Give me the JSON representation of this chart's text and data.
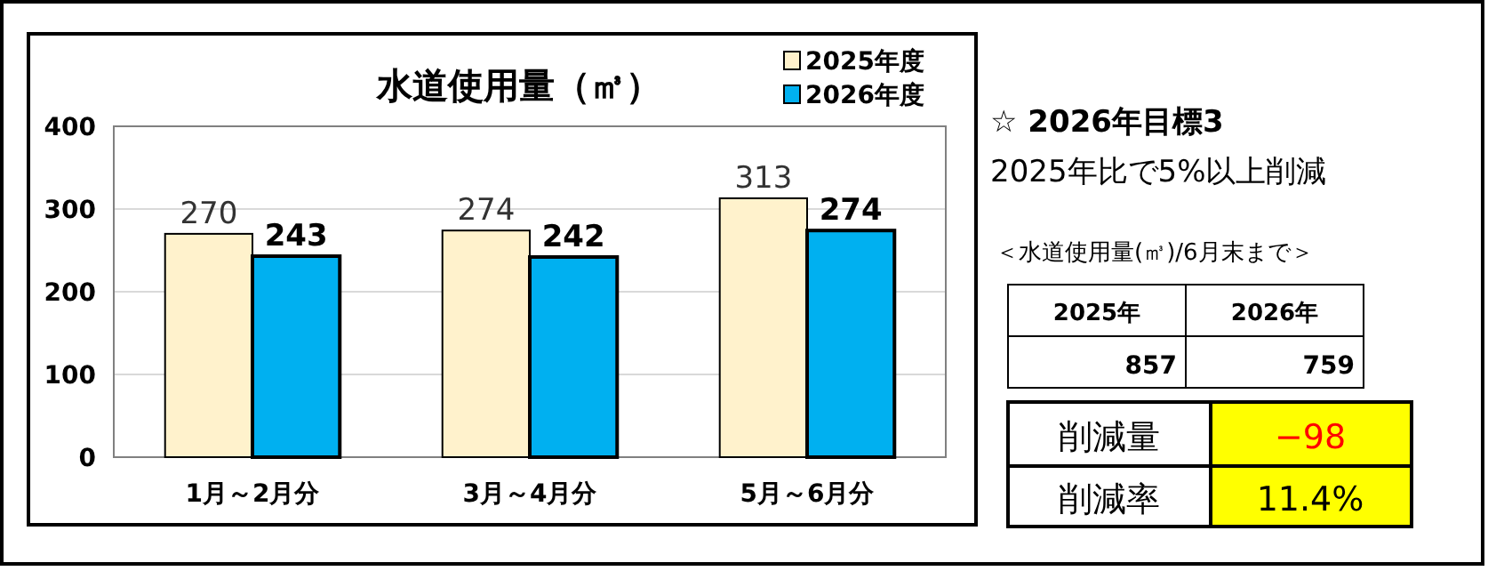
{
  "chart_data": [
    {
      "type": "bar",
      "title": "水道使用量（㎥）",
      "categories": [
        "1月～2月分",
        "3月～4月分",
        "5月～6月分"
      ],
      "series": [
        {
          "name": "2025年度",
          "color": "#fff2cc",
          "values": [
            270,
            274,
            313
          ]
        },
        {
          "name": "2026年度",
          "color": "#00b0f0",
          "values": [
            243,
            242,
            274
          ]
        }
      ],
      "ylim": [
        0,
        400
      ],
      "yticks": [
        0,
        100,
        200,
        300,
        400
      ],
      "grid": "y",
      "legend": "top right",
      "data_labels": true
    },
    {
      "type": "other",
      "title": "☆ 2026年目標3",
      "subtitle": "2025年比で5%以上削減",
      "annotations": [
        "＜水道使用量(㎥)/6月末まで＞",
        "2025年",
        "2026年",
        "857",
        "759",
        "削減量",
        "−98",
        "削減率",
        "11.4%"
      ]
    }
  ]
}
